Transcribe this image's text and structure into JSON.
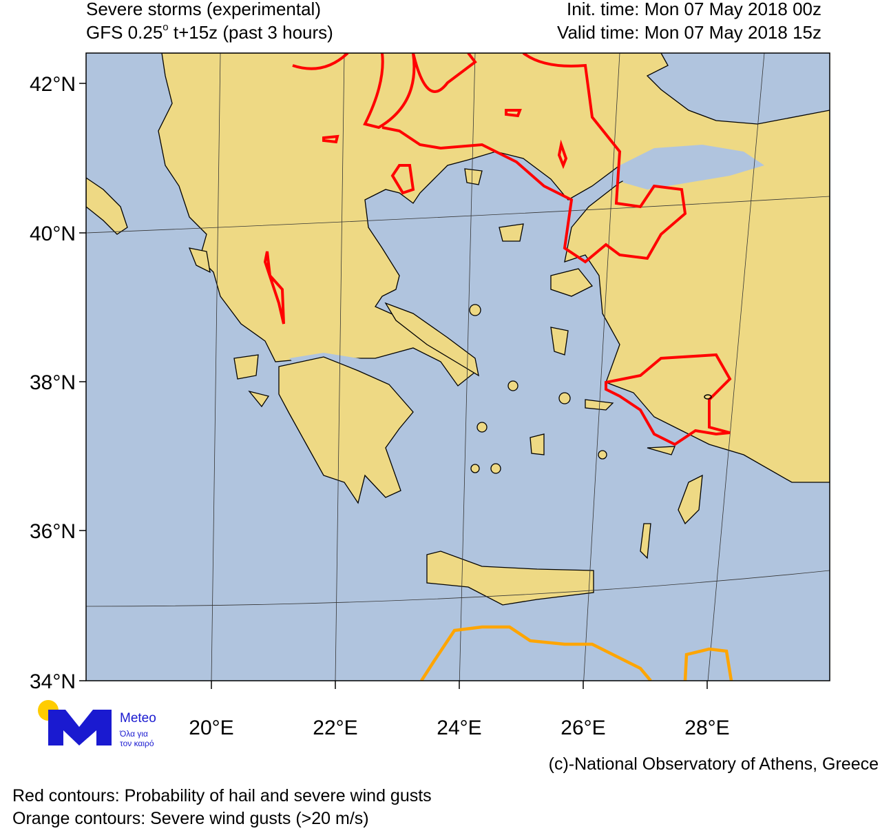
{
  "header": {
    "title": "Severe storms (experimental)",
    "model": "GFS 0.25",
    "model_sup": "o",
    "model_rest": " t+15z (past 3 hours)",
    "init_time": "Init. time: Mon 07 May 2018 00z",
    "valid_time": "Valid time: Mon 07 May 2018 15z"
  },
  "map": {
    "lat_labels": [
      "42°N",
      "40°N",
      "38°N",
      "36°N",
      "34°N"
    ],
    "lon_labels": [
      "20°E",
      "22°E",
      "24°E",
      "26°E",
      "28°E"
    ]
  },
  "logo": {
    "name": "Meteo",
    "tagline_1": "Όλα για",
    "tagline_2": "τον καιρό"
  },
  "credit": "(c)-National Observatory of Athens, Greece",
  "legend": [
    "Red contours: Probability of hail and severe wind gusts",
    "Orange contours: Severe wind gusts (>20 m/s)"
  ]
}
